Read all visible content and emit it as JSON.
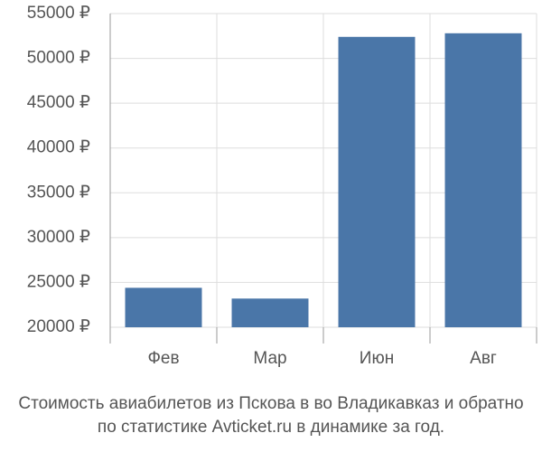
{
  "chart_data": {
    "type": "bar",
    "title": [
      "Стоимость авиабилетов из Пскова в во Владикавказ и обратно",
      "по статистике Avticket.ru в динамике за год."
    ],
    "categories": [
      "Фев",
      "Мар",
      "Июн",
      "Авг"
    ],
    "values": [
      24400,
      23200,
      52400,
      52800
    ],
    "color": "#4a76a8",
    "ylim": [
      20000,
      55000
    ],
    "yticks": [
      {
        "value": 20000,
        "label": "20000 ₽"
      },
      {
        "value": 25000,
        "label": "25000 ₽"
      },
      {
        "value": 30000,
        "label": "30000 ₽"
      },
      {
        "value": 35000,
        "label": "35000 ₽"
      },
      {
        "value": 40000,
        "label": "40000 ₽"
      },
      {
        "value": 45000,
        "label": "45000 ₽"
      },
      {
        "value": 50000,
        "label": "50000 ₽"
      },
      {
        "value": 55000,
        "label": "55000 ₽"
      }
    ],
    "grid": true
  }
}
